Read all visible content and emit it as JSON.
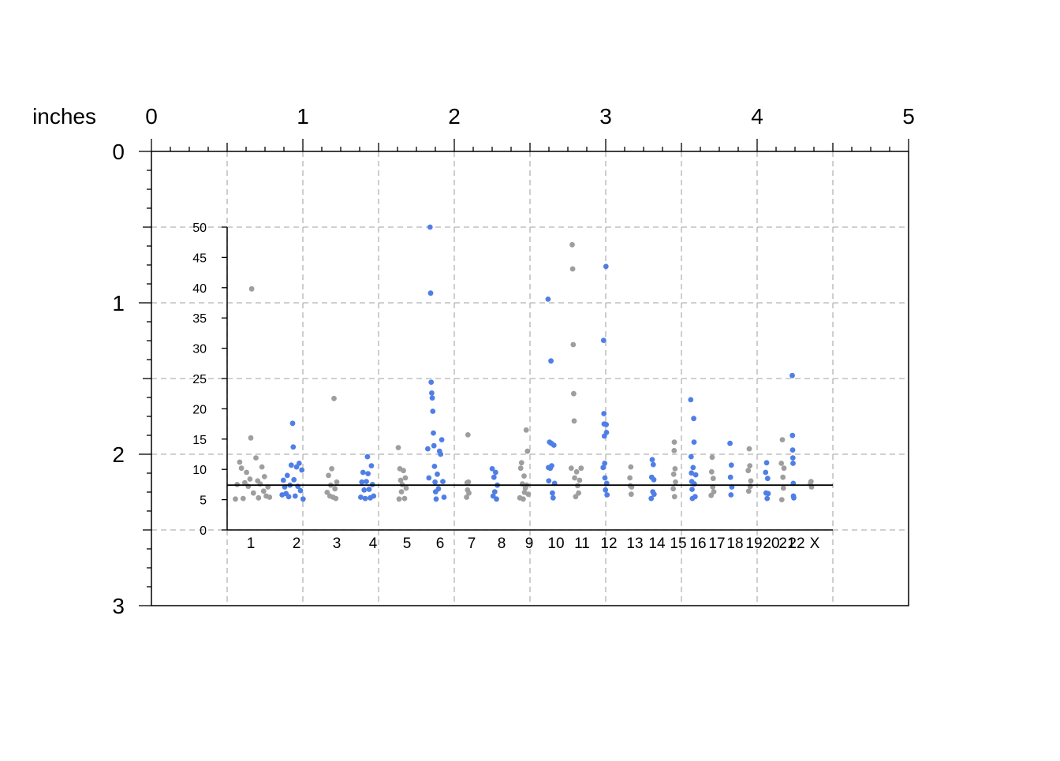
{
  "ruler": {
    "unit_label": "inches",
    "x_ticks": [
      "0",
      "1",
      "2",
      "3",
      "4",
      "5"
    ],
    "y_ticks": [
      "0",
      "1",
      "2",
      "3"
    ],
    "range_in": [
      0,
      5
    ],
    "y_range_in": [
      0,
      3
    ],
    "minor_divisions": 8,
    "grid_style": "dashed",
    "grid_step_in": 0.5
  },
  "colors": {
    "odd_chromosome": "#9e9e9e",
    "even_chromosome": "#4f7fe6",
    "threshold_line": "#000000",
    "grid": "#b3b3b3",
    "axis": "#000000"
  },
  "chart_data": {
    "type": "scatter",
    "title": "",
    "xlabel": "",
    "ylabel": "",
    "ylim": [
      0,
      50
    ],
    "y_ticks": [
      "0",
      "5",
      "10",
      "15",
      "20",
      "25",
      "30",
      "35",
      "40",
      "45",
      "50"
    ],
    "chromosome_labels": [
      "1",
      "2",
      "3",
      "4",
      "5",
      "6",
      "7",
      "8",
      "9",
      "10",
      "11",
      "12",
      "13",
      "14",
      "15",
      "16",
      "17",
      "18",
      "19",
      "20",
      "21",
      "22",
      "X"
    ],
    "threshold": 7.4,
    "series": [
      {
        "color": "#9e9e9e",
        "chromosomes": [
          "1",
          "3",
          "5",
          "7",
          "9",
          "11",
          "13",
          "15",
          "17",
          "19",
          "21",
          "X"
        ],
        "points": [
          [
            "1",
            6,
            5.1
          ],
          [
            "1",
            8,
            7.5
          ],
          [
            "1",
            11,
            11.2
          ],
          [
            "1",
            13,
            10.2
          ],
          [
            "1",
            15,
            5.2
          ],
          [
            "1",
            17,
            7.8
          ],
          [
            "1",
            19,
            9.5
          ],
          [
            "1",
            21,
            7.2
          ],
          [
            "1",
            23,
            8.4
          ],
          [
            "1",
            24,
            15.2
          ],
          [
            "1",
            25,
            39.8
          ],
          [
            "1",
            27,
            6.1
          ],
          [
            "1",
            30,
            11.9
          ],
          [
            "1",
            32,
            8.1
          ],
          [
            "1",
            33,
            5.3
          ],
          [
            "1",
            35,
            7.6
          ],
          [
            "1",
            37,
            10.4
          ],
          [
            "1",
            39,
            6.4
          ],
          [
            "1",
            40,
            8.8
          ],
          [
            "1",
            42,
            5.6
          ],
          [
            "1",
            44,
            7.1
          ],
          [
            "1",
            46,
            5.4
          ],
          [
            "3",
            3,
            6.2
          ],
          [
            "3",
            6,
            9.0
          ],
          [
            "3",
            9,
            5.6
          ],
          [
            "3",
            11,
            7.4
          ],
          [
            "3",
            13,
            10.1
          ],
          [
            "3",
            16,
            5.4
          ],
          [
            "3",
            18,
            21.7
          ],
          [
            "3",
            20,
            6.8
          ],
          [
            "3",
            22,
            5.2
          ],
          [
            "3",
            24,
            7.9
          ],
          [
            "5",
            2,
            13.6
          ],
          [
            "5",
            4,
            5.1
          ],
          [
            "5",
            6,
            10.1
          ],
          [
            "5",
            8,
            8.2
          ],
          [
            "5",
            10,
            6.3
          ],
          [
            "5",
            12,
            7.5
          ],
          [
            "5",
            15,
            9.8
          ],
          [
            "5",
            18,
            5.2
          ],
          [
            "5",
            20,
            8.6
          ],
          [
            "5",
            22,
            6.9
          ],
          [
            "7",
            2,
            5.4
          ],
          [
            "7",
            4,
            7.8
          ],
          [
            "7",
            6,
            6.6
          ],
          [
            "7",
            8,
            15.7
          ],
          [
            "7",
            10,
            7.9
          ],
          [
            "7",
            12,
            6.1
          ],
          [
            "9",
            2,
            5.3
          ],
          [
            "9",
            4,
            10.2
          ],
          [
            "9",
            6,
            11.1
          ],
          [
            "9",
            8,
            7.6
          ],
          [
            "9",
            10,
            5.1
          ],
          [
            "9",
            12,
            8.9
          ],
          [
            "9",
            13,
            6.2
          ],
          [
            "9",
            15,
            6.9
          ],
          [
            "9",
            17,
            16.5
          ],
          [
            "9",
            18,
            7.4
          ],
          [
            "9",
            20,
            13.0
          ],
          [
            "9",
            22,
            5.9
          ],
          [
            "11",
            2,
            10.2
          ],
          [
            "11",
            4,
            47.1
          ],
          [
            "11",
            5,
            43.1
          ],
          [
            "11",
            6,
            30.6
          ],
          [
            "11",
            7,
            22.5
          ],
          [
            "11",
            8,
            18.0
          ],
          [
            "11",
            9,
            8.6
          ],
          [
            "11",
            11,
            5.5
          ],
          [
            "11",
            13,
            9.6
          ],
          [
            "11",
            15,
            7.3
          ],
          [
            "11",
            17,
            6.1
          ],
          [
            "11",
            19,
            8.2
          ],
          [
            "11",
            22,
            10.2
          ],
          [
            "13",
            2,
            8.6
          ],
          [
            "13",
            4,
            7.3
          ],
          [
            "13",
            6,
            10.4
          ],
          [
            "13",
            8,
            5.9
          ],
          [
            "13",
            10,
            7.1
          ],
          [
            "15",
            2,
            6.8
          ],
          [
            "15",
            4,
            9.2
          ],
          [
            "15",
            6,
            13.1
          ],
          [
            "15",
            7,
            14.5
          ],
          [
            "15",
            8,
            5.5
          ],
          [
            "15",
            10,
            10.1
          ],
          [
            "15",
            12,
            7.9
          ],
          [
            "17",
            2,
            5.7
          ],
          [
            "17",
            4,
            9.6
          ],
          [
            "17",
            6,
            12.0
          ],
          [
            "17",
            8,
            7.1
          ],
          [
            "17",
            10,
            8.5
          ],
          [
            "17",
            12,
            6.3
          ],
          [
            "19",
            2,
            9.8
          ],
          [
            "19",
            4,
            6.4
          ],
          [
            "19",
            6,
            13.4
          ],
          [
            "19",
            8,
            10.6
          ],
          [
            "19",
            10,
            7.2
          ],
          [
            "19",
            12,
            8.1
          ],
          [
            "21",
            2,
            11.0
          ],
          [
            "21",
            4,
            5.0
          ],
          [
            "21",
            6,
            14.9
          ],
          [
            "21",
            8,
            8.7
          ],
          [
            "21",
            10,
            6.9
          ],
          [
            "21",
            12,
            10.2
          ],
          [
            "X",
            2,
            7.6
          ],
          [
            "X",
            5,
            8.0
          ],
          [
            "X",
            8,
            7.1
          ]
        ]
      },
      {
        "color": "#4f7fe6",
        "chromosomes": [
          "2",
          "4",
          "6",
          "8",
          "10",
          "12",
          "14",
          "16",
          "18",
          "20",
          "22"
        ],
        "points": [
          [
            "2",
            2,
            5.8
          ],
          [
            "2",
            4,
            8.2
          ],
          [
            "2",
            6,
            7.1
          ],
          [
            "2",
            8,
            6.0
          ],
          [
            "2",
            10,
            9.0
          ],
          [
            "2",
            12,
            5.5
          ],
          [
            "2",
            14,
            7.4
          ],
          [
            "2",
            16,
            10.7
          ],
          [
            "2",
            18,
            17.6
          ],
          [
            "2",
            19,
            13.7
          ],
          [
            "2",
            20,
            8.3
          ],
          [
            "2",
            22,
            5.6
          ],
          [
            "2",
            24,
            10.4
          ],
          [
            "2",
            26,
            7.2
          ],
          [
            "2",
            28,
            11.0
          ],
          [
            "2",
            30,
            6.5
          ],
          [
            "2",
            32,
            9.9
          ],
          [
            "2",
            34,
            5.1
          ],
          [
            "4",
            2,
            5.4
          ],
          [
            "4",
            4,
            7.9
          ],
          [
            "4",
            6,
            9.5
          ],
          [
            "4",
            8,
            6.6
          ],
          [
            "4",
            10,
            5.2
          ],
          [
            "4",
            12,
            8.0
          ],
          [
            "4",
            14,
            12.1
          ],
          [
            "4",
            15,
            9.3
          ],
          [
            "4",
            17,
            6.7
          ],
          [
            "4",
            19,
            5.3
          ],
          [
            "4",
            21,
            10.6
          ],
          [
            "4",
            23,
            7.5
          ],
          [
            "4",
            25,
            5.6
          ],
          [
            "6",
            2,
            13.4
          ],
          [
            "6",
            4,
            8.6
          ],
          [
            "6",
            6,
            50.0
          ],
          [
            "6",
            7,
            39.1
          ],
          [
            "6",
            8,
            24.4
          ],
          [
            "6",
            9,
            22.6
          ],
          [
            "6",
            10,
            21.8
          ],
          [
            "6",
            11,
            19.6
          ],
          [
            "6",
            12,
            16.0
          ],
          [
            "6",
            13,
            13.9
          ],
          [
            "6",
            14,
            10.5
          ],
          [
            "6",
            15,
            7.9
          ],
          [
            "6",
            16,
            6.3
          ],
          [
            "6",
            17,
            5.1
          ],
          [
            "6",
            19,
            9.2
          ],
          [
            "6",
            21,
            6.8
          ],
          [
            "6",
            23,
            13.0
          ],
          [
            "6",
            25,
            12.5
          ],
          [
            "6",
            27,
            14.9
          ],
          [
            "6",
            29,
            8.0
          ],
          [
            "6",
            31,
            5.4
          ],
          [
            "8",
            2,
            10.1
          ],
          [
            "8",
            4,
            5.6
          ],
          [
            "8",
            6,
            8.7
          ],
          [
            "8",
            8,
            6.3
          ],
          [
            "8",
            10,
            9.5
          ],
          [
            "8",
            12,
            5.1
          ],
          [
            "8",
            14,
            7.4
          ],
          [
            "10",
            2,
            38.1
          ],
          [
            "10",
            3,
            10.3
          ],
          [
            "10",
            4,
            8.1
          ],
          [
            "10",
            6,
            14.5
          ],
          [
            "10",
            8,
            10.2
          ],
          [
            "10",
            10,
            27.9
          ],
          [
            "10",
            11,
            14.3
          ],
          [
            "10",
            12,
            10.6
          ],
          [
            "10",
            14,
            6.1
          ],
          [
            "10",
            16,
            5.3
          ],
          [
            "10",
            18,
            14.0
          ],
          [
            "10",
            20,
            7.7
          ],
          [
            "12",
            2,
            10.3
          ],
          [
            "12",
            4,
            31.3
          ],
          [
            "12",
            5,
            19.2
          ],
          [
            "12",
            6,
            17.5
          ],
          [
            "12",
            7,
            15.5
          ],
          [
            "12",
            8,
            11.0
          ],
          [
            "12",
            9,
            8.6
          ],
          [
            "12",
            11,
            6.6
          ],
          [
            "12",
            13,
            43.5
          ],
          [
            "12",
            14,
            17.4
          ],
          [
            "12",
            15,
            16.1
          ],
          [
            "12",
            16,
            7.7
          ],
          [
            "12",
            17,
            5.8
          ],
          [
            "14",
            2,
            5.2
          ],
          [
            "14",
            4,
            8.7
          ],
          [
            "14",
            6,
            11.6
          ],
          [
            "14",
            8,
            6.3
          ],
          [
            "14",
            10,
            10.8
          ],
          [
            "14",
            12,
            8.3
          ],
          [
            "14",
            13,
            5.9
          ],
          [
            "16",
            2,
            21.5
          ],
          [
            "16",
            3,
            12.1
          ],
          [
            "16",
            4,
            9.4
          ],
          [
            "16",
            5,
            8.0
          ],
          [
            "16",
            6,
            6.7
          ],
          [
            "16",
            7,
            5.2
          ],
          [
            "16",
            9,
            10.3
          ],
          [
            "16",
            11,
            18.4
          ],
          [
            "16",
            12,
            14.5
          ],
          [
            "16",
            13,
            7.6
          ],
          [
            "16",
            15,
            5.5
          ],
          [
            "16",
            17,
            9.1
          ],
          [
            "18",
            2,
            14.3
          ],
          [
            "18",
            4,
            8.7
          ],
          [
            "18",
            6,
            5.8
          ],
          [
            "18",
            8,
            10.7
          ],
          [
            "18",
            10,
            7.1
          ],
          [
            "20",
            2,
            9.5
          ],
          [
            "20",
            4,
            6.1
          ],
          [
            "20",
            6,
            11.1
          ],
          [
            "20",
            8,
            5.2
          ],
          [
            "20",
            10,
            8.5
          ],
          [
            "20",
            12,
            6.0
          ],
          [
            "22",
            2,
            25.5
          ],
          [
            "22",
            3,
            15.6
          ],
          [
            "22",
            4,
            13.2
          ],
          [
            "22",
            5,
            11.9
          ],
          [
            "22",
            6,
            11.0
          ],
          [
            "22",
            7,
            7.7
          ],
          [
            "22",
            8,
            5.6
          ],
          [
            "22",
            10,
            5.3
          ]
        ]
      }
    ]
  }
}
